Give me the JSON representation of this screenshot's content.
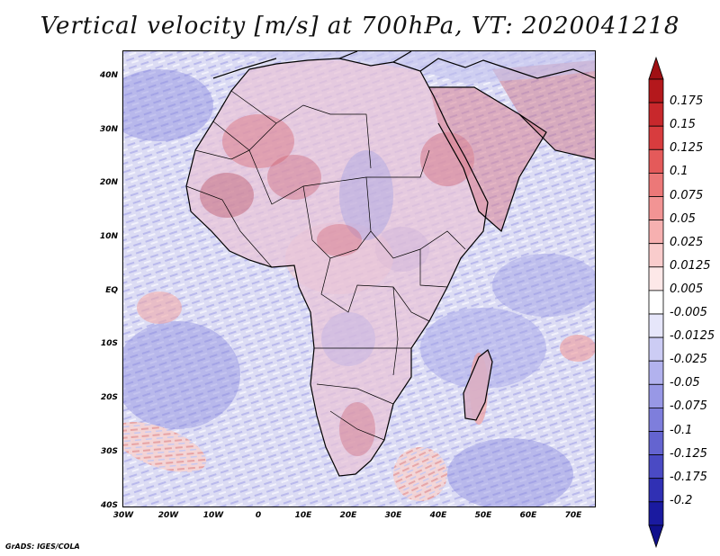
{
  "title": "Vertical velocity [m/s] at 700hPa, VT: 2020041218",
  "credit": "GrADS: IGES/COLA",
  "map": {
    "region": "Africa",
    "lat_labels": [
      "40N",
      "30N",
      "20N",
      "10N",
      "EQ",
      "10S",
      "20S",
      "30S",
      "40S"
    ],
    "lon_labels": [
      "30W",
      "20W",
      "10W",
      "0",
      "10E",
      "20E",
      "30E",
      "40E",
      "50E",
      "60E",
      "70E"
    ]
  },
  "colorbar": {
    "levels": [
      "0.175",
      "0.15",
      "0.125",
      "0.1",
      "0.075",
      "0.05",
      "0.025",
      "0.0125",
      "0.005",
      "-0.005",
      "-0.0125",
      "-0.025",
      "-0.05",
      "-0.075",
      "-0.1",
      "-0.125",
      "-0.175",
      "-0.2"
    ],
    "colors": [
      "#b4181c",
      "#c8282c",
      "#d83c3e",
      "#e45a5a",
      "#ec7878",
      "#f29494",
      "#f6b0b0",
      "#f9cccc",
      "#fde8e8",
      "#ffffff",
      "#e6e6fa",
      "#ccccf4",
      "#b2b2ee",
      "#9898e6",
      "#7e7edc",
      "#6464d0",
      "#4a4ac4",
      "#3030b4",
      "#1a1aa0"
    ],
    "top_color": "#a01014",
    "bottom_color": "#10108c"
  },
  "colors": {
    "land_outline": "#000000",
    "background": "#ffffff"
  }
}
